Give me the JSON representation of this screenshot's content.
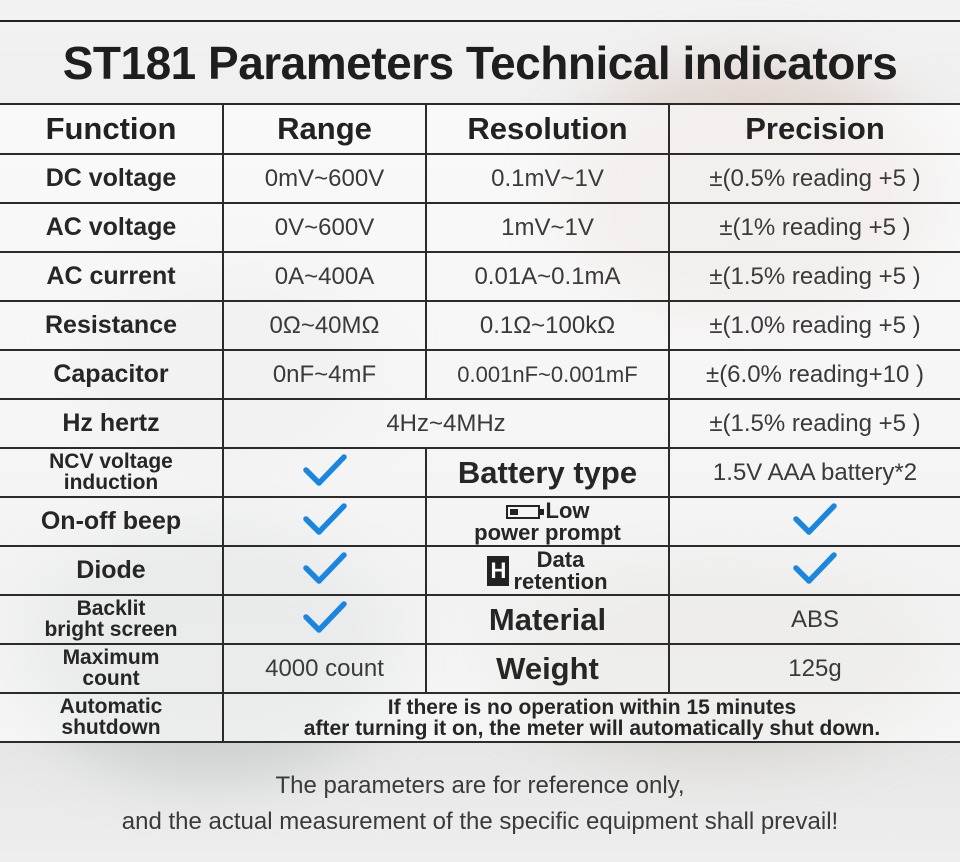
{
  "title": "ST181 Parameters Technical indicators",
  "headers": [
    "Function",
    "Range",
    "Resolution",
    "Precision"
  ],
  "rows": {
    "dc_voltage": {
      "function": "DC voltage",
      "range": "0mV~600V",
      "resolution": "0.1mV~1V",
      "precision": "±(0.5% reading +5 )"
    },
    "ac_voltage": {
      "function": "AC voltage",
      "range": "0V~600V",
      "resolution": "1mV~1V",
      "precision": "±(1% reading +5 )"
    },
    "ac_current": {
      "function": "AC current",
      "range": "0A~400A",
      "resolution": "0.01A~0.1mA",
      "precision": "±(1.5% reading +5 )"
    },
    "resistance": {
      "function": "Resistance",
      "range": "0Ω~40MΩ",
      "resolution": "0.1Ω~100kΩ",
      "precision": "±(1.0% reading +5 )"
    },
    "capacitor": {
      "function": "Capacitor",
      "range": "0nF~4mF",
      "resolution": "0.001nF~0.001mF",
      "precision": "±(6.0% reading+10 )"
    },
    "hz": {
      "function": "Hz hertz",
      "range": "4Hz~4MHz",
      "precision": "±(1.5% reading +5 )"
    }
  },
  "features": {
    "ncv": {
      "line1": "NCV voltage",
      "line2": "induction",
      "supported": true
    },
    "beep": {
      "label": "On-off beep",
      "supported": true
    },
    "diode": {
      "label": "Diode",
      "supported": true
    },
    "backlit": {
      "line1": "Backlit",
      "line2": "bright screen",
      "supported": true
    },
    "max_count": {
      "line1": "Maximum",
      "line2": "count",
      "value": "4000 count"
    },
    "auto_shutdown": {
      "line1": "Automatic",
      "line2": "shutdown",
      "line3": "If there is no operation within 15 minutes",
      "line4": "after turning it on, the meter will automatically shut down."
    }
  },
  "specs": {
    "battery_type": {
      "label": "Battery type",
      "value": "1.5V AAA battery*2"
    },
    "low_power": {
      "line1": "Low",
      "line2": "power prompt",
      "icon": "battery-icon",
      "supported": true
    },
    "data_retention": {
      "line1": "Data",
      "line2": "retention",
      "icon": "H",
      "supported": true
    },
    "material": {
      "label": "Material",
      "value": "ABS"
    },
    "weight": {
      "label": "Weight",
      "value": "125g"
    }
  },
  "footer": {
    "line1": "The parameters are for reference only,",
    "line2": "and the actual measurement of the specific equipment shall prevail!"
  },
  "colors": {
    "check": "#1a86e0",
    "text": "#2a2a2a",
    "border": "#2b2b2b"
  }
}
